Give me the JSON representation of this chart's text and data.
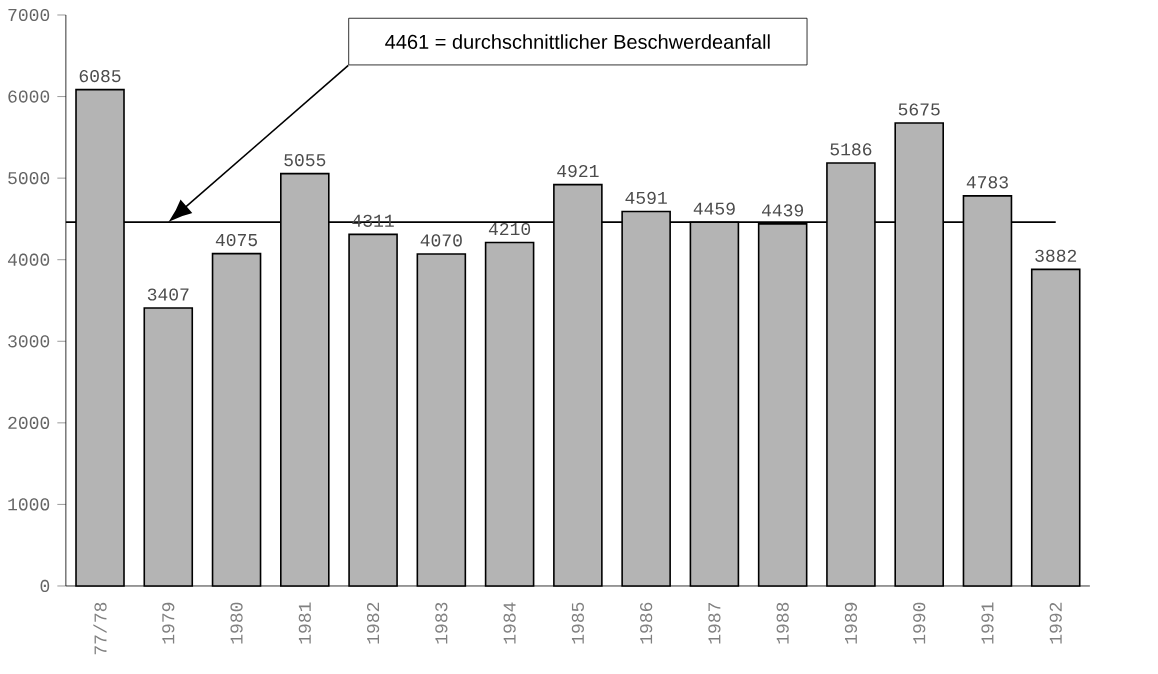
{
  "chart_data": {
    "type": "bar",
    "categories": [
      "77/78",
      "1979",
      "1980",
      "1981",
      "1982",
      "1983",
      "1984",
      "1985",
      "1986",
      "1987",
      "1988",
      "1989",
      "1990",
      "1991",
      "1992"
    ],
    "values": [
      6085,
      3407,
      4075,
      5055,
      4311,
      4070,
      4210,
      4921,
      4591,
      4459,
      4439,
      5186,
      5675,
      4783,
      3882
    ],
    "color": "#b4b4b4",
    "data_labels": true,
    "ylim": [
      0,
      7000
    ],
    "yticks": [
      0,
      1000,
      2000,
      3000,
      4000,
      5000,
      6000,
      7000
    ],
    "grid": false,
    "ref_lines": [
      {
        "axis": "y",
        "value": 4461,
        "label": "4461 = durchschnittlicher Beschwerdeanfall",
        "color": "#000000"
      }
    ]
  }
}
